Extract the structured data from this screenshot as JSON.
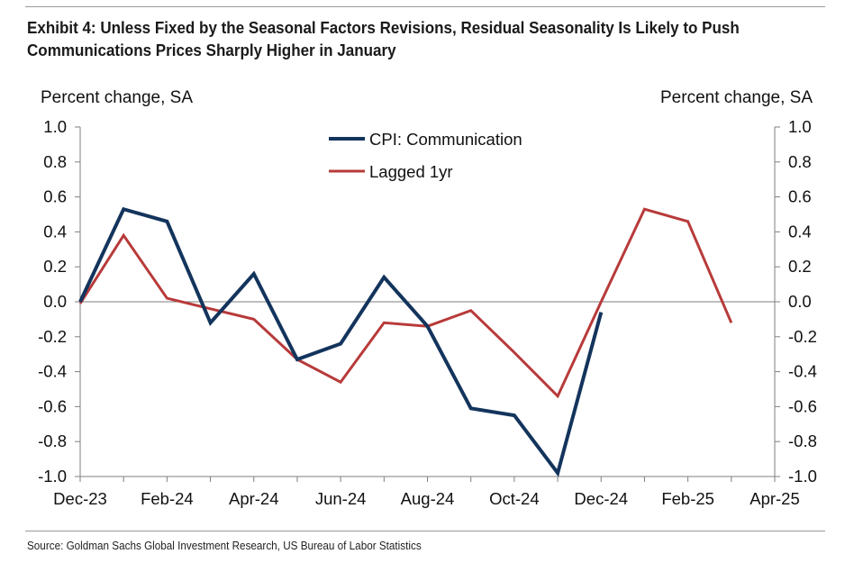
{
  "title": {
    "line1": "Exhibit 4: Unless Fixed by the Seasonal Factors Revisions, Residual Seasonality Is Likely to Push",
    "line2": "Communications Prices Sharply Higher in January"
  },
  "source": "Source: Goldman Sachs Global Investment Research, US Bureau of Labor Statistics",
  "colors": {
    "series1": "#13345c",
    "series2": "#b83a3a"
  },
  "chart_data": {
    "type": "line",
    "ylabel_left": "Percent change, SA",
    "ylabel_right": "Percent change, SA",
    "ylim": [
      -1.0,
      1.0
    ],
    "ytick_labels": [
      "1.0",
      "0.8",
      "0.6",
      "0.4",
      "0.2",
      "0.0",
      "-0.2",
      "-0.4",
      "-0.6",
      "-0.8",
      "-1.0"
    ],
    "xtick_labels": [
      "Dec-23",
      "Feb-24",
      "Apr-24",
      "Jun-24",
      "Aug-24",
      "Oct-24",
      "Dec-24",
      "Feb-25",
      "Apr-25"
    ],
    "grid": false,
    "legend": "top-center",
    "series": [
      {
        "name": "CPI: Communication",
        "color": "#13345c",
        "x": [
          "Dec-23",
          "Jan-24",
          "Feb-24",
          "Mar-24",
          "Apr-24",
          "May-24",
          "Jun-24",
          "Jul-24",
          "Aug-24",
          "Sep-24",
          "Oct-24",
          "Nov-24",
          "Dec-24"
        ],
        "values": [
          0.0,
          0.53,
          0.46,
          -0.12,
          0.16,
          -0.33,
          -0.24,
          0.14,
          -0.14,
          -0.61,
          -0.65,
          -0.98,
          -0.06
        ]
      },
      {
        "name": "Lagged 1yr",
        "color": "#b83a3a",
        "x": [
          "Dec-23",
          "Jan-24",
          "Feb-24",
          "Mar-24",
          "Apr-24",
          "May-24",
          "Jun-24",
          "Jul-24",
          "Aug-24",
          "Sep-24",
          "Oct-24",
          "Nov-24",
          "Dec-24",
          "Jan-25",
          "Feb-25",
          "Mar-25"
        ],
        "values": [
          -0.01,
          0.38,
          0.02,
          -0.04,
          -0.1,
          -0.33,
          -0.46,
          -0.12,
          -0.14,
          -0.05,
          -0.29,
          -0.54,
          0.0,
          0.53,
          0.46,
          -0.12
        ]
      }
    ]
  }
}
